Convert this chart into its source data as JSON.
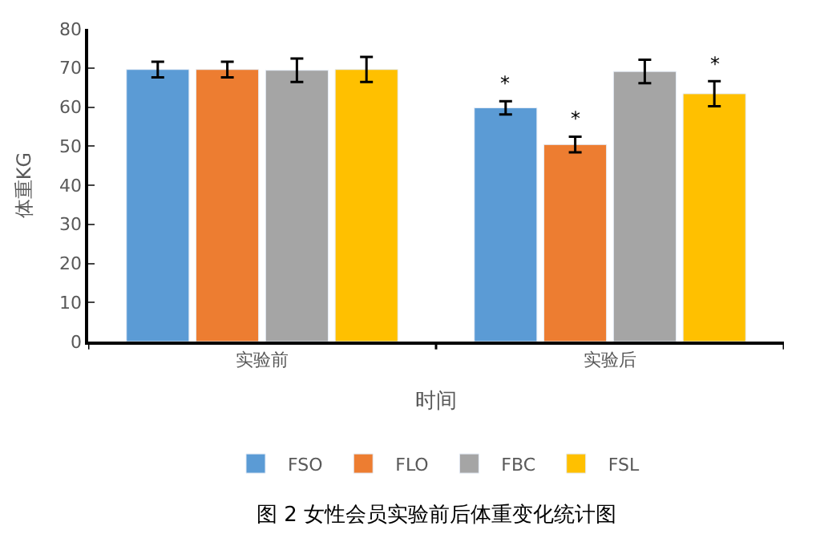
{
  "chart_data": {
    "type": "bar",
    "title": "图 2 女性会员实验前后体重变化统计图",
    "xlabel": "时间",
    "ylabel": "体重KG",
    "categories": [
      "实验前",
      "实验后"
    ],
    "series": [
      {
        "name": "FSO",
        "color": "#5b9bd5",
        "values": [
          69.6,
          59.8
        ],
        "errors": [
          2,
          1.7
        ],
        "value_labels": [
          null,
          "*"
        ]
      },
      {
        "name": "FLO",
        "color": "#ed7d31",
        "values": [
          69.6,
          50.4
        ],
        "errors": [
          2,
          2
        ],
        "value_labels": [
          null,
          "*"
        ]
      },
      {
        "name": "FBC",
        "color": "#a5a5a5",
        "values": [
          69.4,
          69.1
        ],
        "errors": [
          3,
          3
        ],
        "value_labels": [
          null,
          null
        ]
      },
      {
        "name": "FSL",
        "color": "#ffc000",
        "values": [
          69.6,
          63.4
        ],
        "errors": [
          3.2,
          3.2
        ],
        "value_labels": [
          null,
          "*"
        ]
      }
    ],
    "ylim": [
      0,
      80
    ],
    "yticks": [
      0,
      10,
      20,
      30,
      40,
      50,
      60,
      70,
      80
    ],
    "legend": "bottom"
  }
}
